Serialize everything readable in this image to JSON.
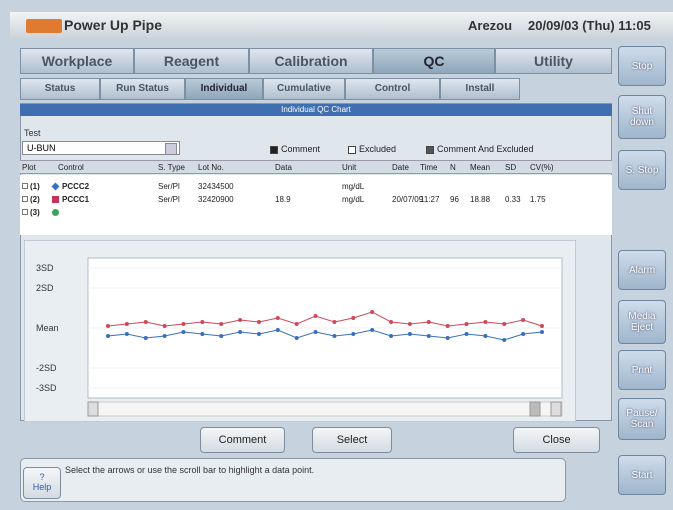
{
  "header": {
    "app_title": "Power Up Pipe",
    "user": "Arezou",
    "datetime": "20/09/03 (Thu) 11:05"
  },
  "main_tabs": [
    "Workplace",
    "Reagent",
    "Calibration",
    "QC",
    "Utility"
  ],
  "sub_tabs": [
    "Status",
    "Run Status",
    "Individual",
    "Cumulative",
    "Control",
    "Install"
  ],
  "panel_title": "Individual QC Chart",
  "test": {
    "label": "Test",
    "value": "U-BUN"
  },
  "legend": [
    "Comment",
    "Excluded",
    "Comment And Excluded"
  ],
  "table": {
    "columns": [
      "Plot",
      "Control",
      "S. Type",
      "Lot No.",
      "Data",
      "Unit",
      "Date",
      "Time",
      "N",
      "Mean",
      "SD",
      "CV(%)"
    ],
    "rows": [
      [
        "(1)",
        "PCCC2",
        "Ser/Pl",
        "32434500",
        null,
        "mg/dL",
        null,
        null,
        null,
        null,
        null,
        null
      ],
      [
        "(2)",
        "PCCC1",
        "Ser/Pl",
        "32420900",
        "18.9",
        "mg/dL",
        "20/07/09",
        "11:27",
        "96",
        "18.88",
        "0.33",
        "1.75"
      ],
      [
        "(3)",
        null,
        null,
        null,
        null,
        null,
        null,
        null,
        null,
        null,
        null,
        null
      ]
    ]
  },
  "chart_data": {
    "type": "line",
    "categories": [
      null,
      null,
      null,
      null,
      null,
      null,
      null,
      null,
      null,
      null,
      null,
      null,
      null,
      null,
      null,
      null,
      null,
      null,
      null,
      null,
      null,
      null,
      null,
      null
    ],
    "series": [
      {
        "name": "PCCC2",
        "color": "#3a6fc0",
        "values": [
          -0.4,
          -0.3,
          -0.5,
          -0.4,
          -0.2,
          -0.3,
          -0.4,
          -0.2,
          -0.3,
          -0.1,
          -0.5,
          -0.2,
          -0.4,
          -0.3,
          -0.1,
          -0.4,
          -0.3,
          -0.4,
          -0.5,
          -0.3,
          -0.4,
          -0.6,
          -0.3,
          -0.2
        ]
      },
      {
        "name": "PCCC1",
        "color": "#d0475a",
        "values": [
          0.1,
          0.2,
          0.3,
          0.1,
          0.2,
          0.3,
          0.2,
          0.4,
          0.3,
          0.5,
          0.2,
          0.6,
          0.3,
          0.5,
          0.8,
          0.3,
          0.2,
          0.3,
          0.1,
          0.2,
          0.3,
          0.2,
          0.4,
          0.1
        ]
      }
    ],
    "ylim": [
      -3.5,
      3.5
    ],
    "yticks": [
      {
        "value": 3,
        "label": "3SD"
      },
      {
        "value": 2,
        "label": "2SD"
      },
      {
        "value": 0,
        "label": "Mean"
      },
      {
        "value": -2,
        "label": "-2SD"
      },
      {
        "value": -3,
        "label": "-3SD"
      }
    ]
  },
  "buttons": [
    "Comment",
    "Select",
    "Close"
  ],
  "help": {
    "icon": "?",
    "label": "Help",
    "message": "Select the arrows or use the scroll bar to highlight a data point."
  },
  "side_buttons": [
    "Stop",
    "Shut down",
    "S. Stop",
    "Alarm",
    "Media Eject",
    "Print",
    "Pause/ Scan",
    "Start"
  ]
}
